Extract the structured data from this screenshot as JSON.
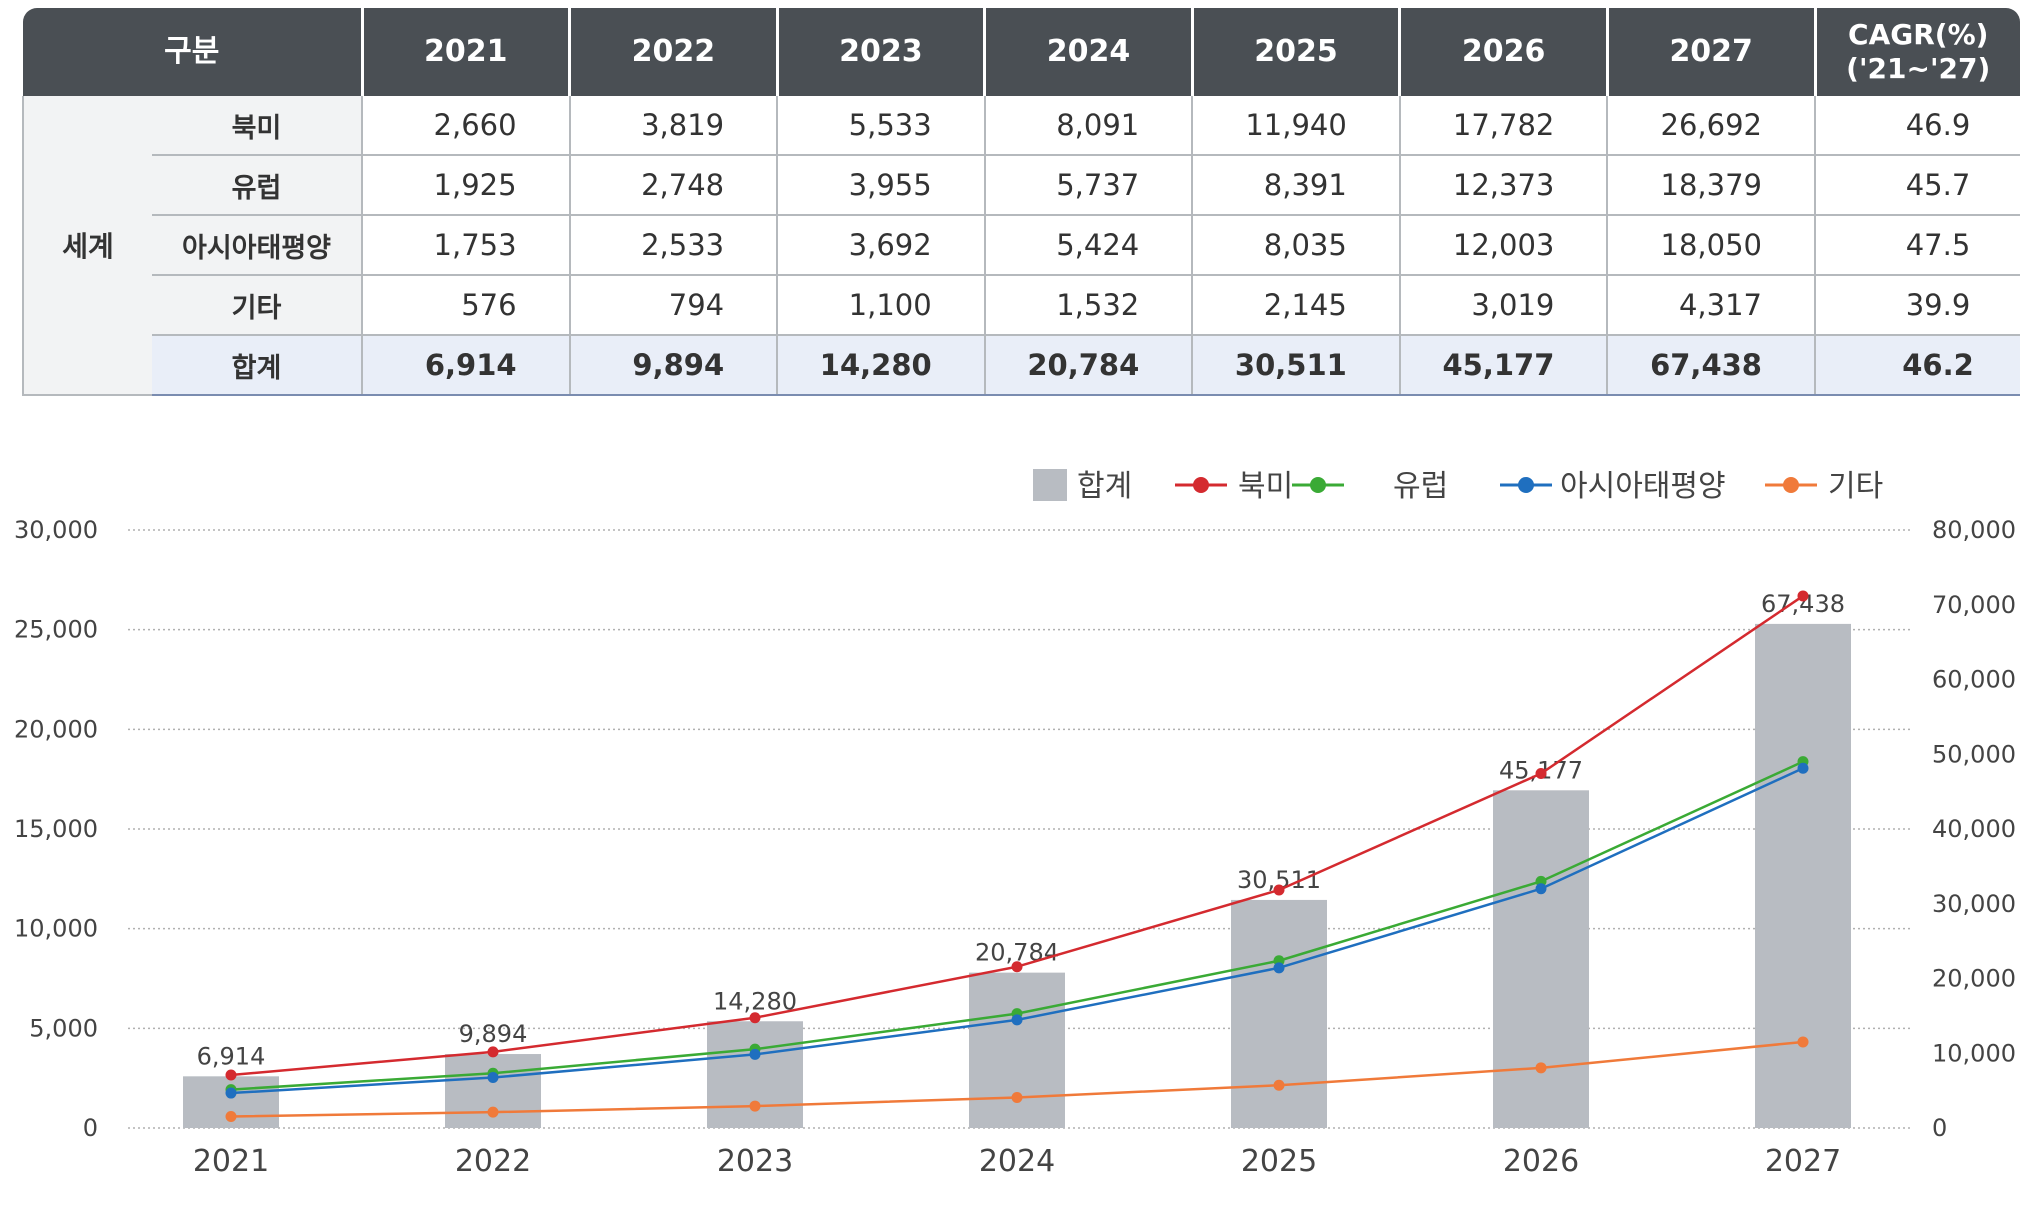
{
  "table": {
    "headers": [
      "구분",
      "2021",
      "2022",
      "2023",
      "2024",
      "2025",
      "2026",
      "2027"
    ],
    "cagr_header_line1": "CAGR(%)",
    "cagr_header_line2": "('21~'27)",
    "group_label": "세계",
    "rows": [
      {
        "region": "북미",
        "values": [
          "2,660",
          "3,819",
          "5,533",
          "8,091",
          "11,940",
          "17,782",
          "26,692"
        ],
        "cagr": "46.9"
      },
      {
        "region": "유럽",
        "values": [
          "1,925",
          "2,748",
          "3,955",
          "5,737",
          "8,391",
          "12,373",
          "18,379"
        ],
        "cagr": "45.7"
      },
      {
        "region": "아시아태평양",
        "values": [
          "1,753",
          "2,533",
          "3,692",
          "5,424",
          "8,035",
          "12,003",
          "18,050"
        ],
        "cagr": "47.5"
      },
      {
        "region": "기타",
        "values": [
          "576",
          "794",
          "1,100",
          "1,532",
          "2,145",
          "3,019",
          "4,317"
        ],
        "cagr": "39.9"
      },
      {
        "region": "합계",
        "values": [
          "6,914",
          "9,894",
          "14,280",
          "20,784",
          "30,511",
          "45,177",
          "67,438"
        ],
        "cagr": "46.2"
      }
    ]
  },
  "chart_data": {
    "type": "bar+line",
    "categories": [
      "2021",
      "2022",
      "2023",
      "2024",
      "2025",
      "2026",
      "2027"
    ],
    "bar_series": {
      "name": "합계",
      "axis": "right",
      "color": "#b8bcc2",
      "values": [
        6914,
        9894,
        14280,
        20784,
        30511,
        45177,
        67438
      ],
      "labels": [
        "6,914",
        "9,894",
        "14,280",
        "20,784",
        "30,511",
        "45,177",
        "67,438"
      ]
    },
    "line_series": [
      {
        "name": "북미",
        "axis": "left",
        "color": "#d42a2f",
        "values": [
          2660,
          3819,
          5533,
          8091,
          11940,
          17782,
          26692
        ]
      },
      {
        "name": "유럽",
        "axis": "left",
        "color": "#3aaa35",
        "values": [
          1925,
          2748,
          3955,
          5737,
          8391,
          12373,
          18379
        ]
      },
      {
        "name": "아시아태평양",
        "axis": "left",
        "color": "#1f6fbf",
        "values": [
          1753,
          2533,
          3692,
          5424,
          8035,
          12003,
          18050
        ]
      },
      {
        "name": "기타",
        "axis": "left",
        "color": "#f07a3a",
        "values": [
          576,
          794,
          1100,
          1532,
          2145,
          3019,
          4317
        ]
      }
    ],
    "left_axis": {
      "min": 0,
      "max": 30000,
      "ticks": [
        0,
        5000,
        10000,
        15000,
        20000,
        25000,
        30000
      ],
      "tick_labels": [
        "0",
        "5,000",
        "10,000",
        "15,000",
        "20,000",
        "25,000",
        "30,000"
      ]
    },
    "right_axis": {
      "min": 0,
      "max": 80000,
      "ticks": [
        0,
        10000,
        20000,
        30000,
        40000,
        50000,
        60000,
        70000,
        80000
      ],
      "tick_labels": [
        "0",
        "10,000",
        "20,000",
        "30,000",
        "40,000",
        "50,000",
        "60,000",
        "70,000",
        "80,000"
      ]
    },
    "grid": true,
    "legend_position": "top-right"
  }
}
